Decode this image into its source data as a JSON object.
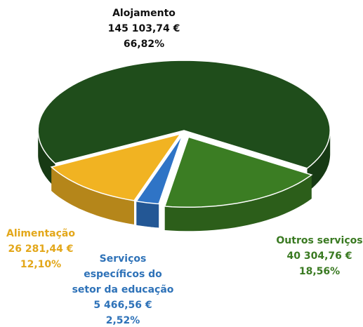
{
  "chart_data": {
    "type": "pie",
    "categories": [
      "Alojamento",
      "Outros serviços",
      "Serviços específicos do setor da educação",
      "Alimentação"
    ],
    "values": [
      66.82,
      18.56,
      2.52,
      12.1
    ],
    "value_labels": [
      "66,82%",
      "18,56%",
      "2,52%",
      "12,10%"
    ],
    "amounts": [
      145103.74,
      40304.76,
      5466.56,
      26281.44
    ],
    "amount_labels": [
      "145 103,74 €",
      "40 304,76 €",
      "5 466,56 €",
      "26 281,44 €"
    ],
    "colors": [
      "#1f4d1b",
      "#3b7d23",
      "#2f74c6",
      "#f1b322"
    ],
    "label_colors": [
      "#111111",
      "#3a7a22",
      "#2e72b8",
      "#e3a71a"
    ]
  }
}
